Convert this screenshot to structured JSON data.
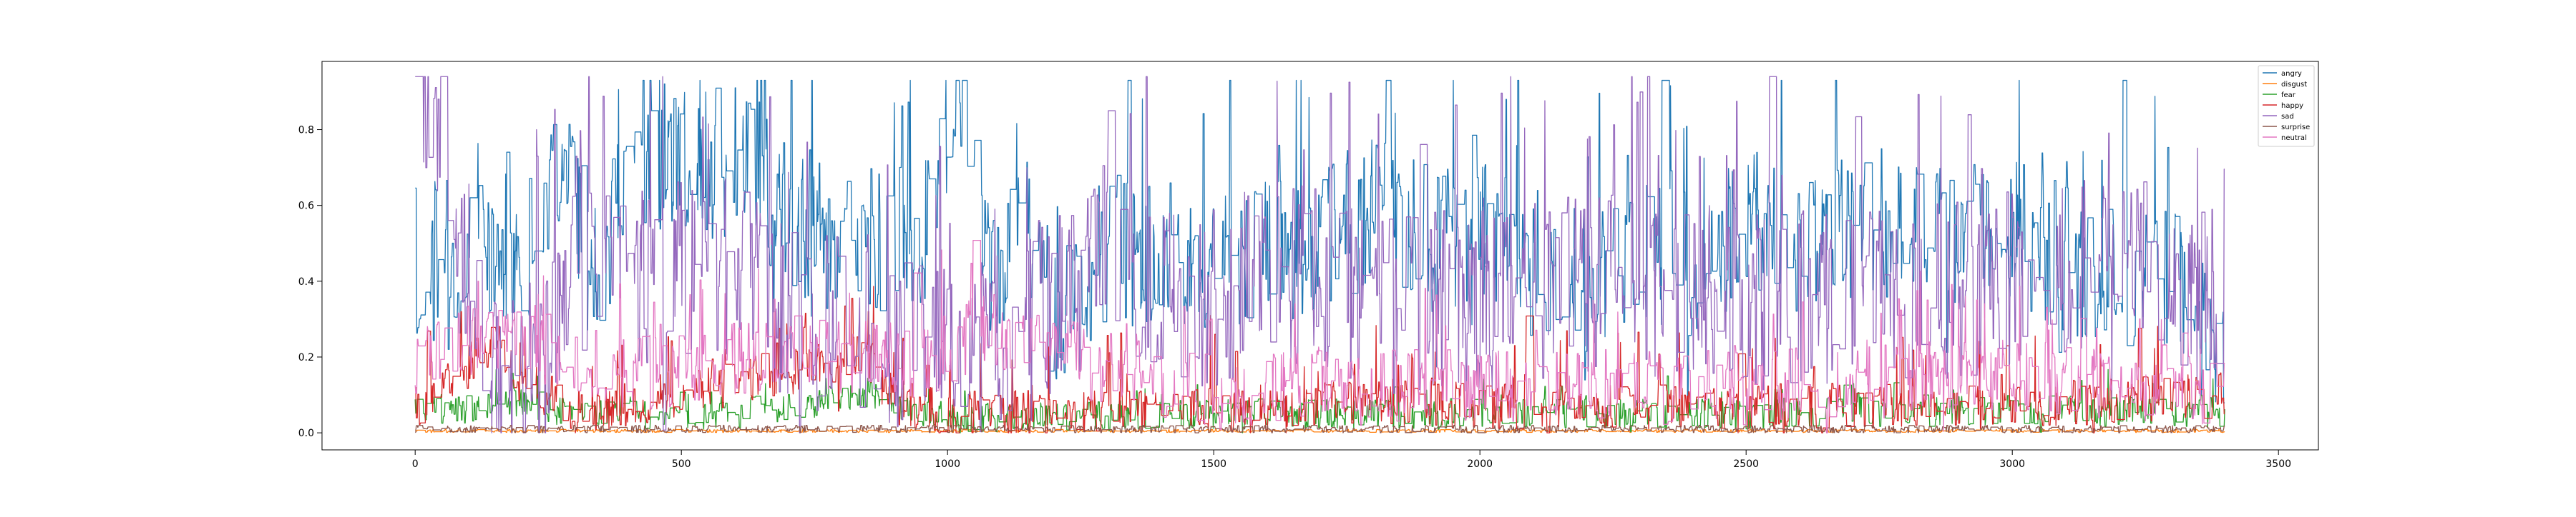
{
  "chart_data": {
    "type": "line",
    "title": "",
    "xlabel": "",
    "ylabel": "",
    "xlim": [
      -175,
      3575
    ],
    "ylim": [
      -0.045,
      0.98
    ],
    "xticks": [
      0,
      500,
      1000,
      1500,
      2000,
      2500,
      3000,
      3500
    ],
    "xtick_labels": [
      "0",
      "500",
      "1000",
      "1500",
      "2000",
      "2500",
      "3000",
      "3500"
    ],
    "yticks": [
      0.0,
      0.2,
      0.4,
      0.6,
      0.8
    ],
    "ytick_labels": [
      "0.0",
      "0.2",
      "0.4",
      "0.6",
      "0.8"
    ],
    "grid": false,
    "legend_position": "top-right",
    "n_points": 3400,
    "series": [
      {
        "name": "angry",
        "color": "#1f77b4",
        "base": 0.5,
        "spread": 0.2,
        "spike": 0.12,
        "max": 0.93,
        "anchors": [
          [
            0,
            0.56
          ],
          [
            5,
            0.2
          ],
          [
            20,
            0.35
          ],
          [
            90,
            0.45
          ],
          [
            150,
            0.5
          ],
          [
            185,
            0.48
          ],
          [
            230,
            0.48
          ],
          [
            260,
            0.7
          ],
          [
            290,
            0.75
          ],
          [
            330,
            0.4
          ],
          [
            420,
            0.76
          ],
          [
            520,
            0.7
          ],
          [
            640,
            0.72
          ],
          [
            680,
            0.58
          ],
          [
            800,
            0.5
          ],
          [
            870,
            0.52
          ],
          [
            950,
            0.5
          ],
          [
            1020,
            0.92
          ],
          [
            1060,
            0.48
          ],
          [
            1100,
            0.43
          ],
          [
            1130,
            0.65
          ],
          [
            1200,
            0.3
          ],
          [
            1300,
            0.5
          ],
          [
            1400,
            0.45
          ],
          [
            1500,
            0.45
          ],
          [
            1600,
            0.5
          ],
          [
            1700,
            0.5
          ],
          [
            1800,
            0.6
          ],
          [
            1900,
            0.5
          ],
          [
            2000,
            0.55
          ],
          [
            2100,
            0.45
          ],
          [
            2200,
            0.4
          ],
          [
            2300,
            0.5
          ],
          [
            2400,
            0.45
          ],
          [
            2500,
            0.55
          ],
          [
            2600,
            0.5
          ],
          [
            2700,
            0.55
          ],
          [
            2800,
            0.55
          ],
          [
            2900,
            0.5
          ],
          [
            3000,
            0.55
          ],
          [
            3100,
            0.45
          ],
          [
            3200,
            0.45
          ],
          [
            3300,
            0.4
          ],
          [
            3399,
            0.2
          ]
        ]
      },
      {
        "name": "disgust",
        "color": "#ff7f0e",
        "base": 0.004,
        "spread": 0.004,
        "spike": 0.0,
        "max": 0.03,
        "anchors": [
          [
            0,
            0.005
          ],
          [
            3399,
            0.005
          ]
        ]
      },
      {
        "name": "fear",
        "color": "#2ca02c",
        "base": 0.04,
        "spread": 0.04,
        "spike": 0.02,
        "max": 0.28,
        "anchors": [
          [
            0,
            0.06
          ],
          [
            200,
            0.08
          ],
          [
            300,
            0.05
          ],
          [
            600,
            0.05
          ],
          [
            850,
            0.1
          ],
          [
            1000,
            0.04
          ],
          [
            1500,
            0.05
          ],
          [
            2000,
            0.05
          ],
          [
            2500,
            0.05
          ],
          [
            3000,
            0.06
          ],
          [
            3399,
            0.05
          ]
        ]
      },
      {
        "name": "happy",
        "color": "#d62728",
        "base": 0.05,
        "spread": 0.06,
        "spike": 0.05,
        "max": 0.93,
        "anchors": [
          [
            0,
            0.05
          ],
          [
            160,
            0.25
          ],
          [
            190,
            0.12
          ],
          [
            250,
            0.1
          ],
          [
            300,
            0.05
          ],
          [
            850,
            0.2
          ],
          [
            900,
            0.08
          ],
          [
            1000,
            0.05
          ],
          [
            1500,
            0.06
          ],
          [
            1800,
            0.08
          ],
          [
            2000,
            0.07
          ],
          [
            2500,
            0.07
          ],
          [
            3000,
            0.07
          ],
          [
            3399,
            0.1
          ]
        ]
      },
      {
        "name": "sad",
        "color": "#9467bd",
        "base": 0.32,
        "spread": 0.24,
        "spike": 0.14,
        "max": 0.94,
        "anchors": [
          [
            0,
            0.9
          ],
          [
            80,
            0.6
          ],
          [
            150,
            0.1
          ],
          [
            250,
            0.2
          ],
          [
            300,
            0.6
          ],
          [
            380,
            0.4
          ],
          [
            600,
            0.45
          ],
          [
            700,
            0.3
          ],
          [
            900,
            0.25
          ],
          [
            1000,
            0.2
          ],
          [
            1100,
            0.25
          ],
          [
            1200,
            0.35
          ],
          [
            1300,
            0.4
          ],
          [
            1500,
            0.35
          ],
          [
            1600,
            0.45
          ],
          [
            1800,
            0.35
          ],
          [
            2000,
            0.35
          ],
          [
            2200,
            0.4
          ],
          [
            2500,
            0.35
          ],
          [
            2800,
            0.35
          ],
          [
            3000,
            0.4
          ],
          [
            3200,
            0.45
          ],
          [
            3399,
            0.35
          ]
        ]
      },
      {
        "name": "surprise",
        "color": "#8c564b",
        "base": 0.01,
        "spread": 0.01,
        "spike": 0.0,
        "max": 0.05,
        "anchors": [
          [
            0,
            0.01
          ],
          [
            3399,
            0.01
          ]
        ]
      },
      {
        "name": "neutral",
        "color": "#e377c2",
        "base": 0.12,
        "spread": 0.1,
        "spike": 0.06,
        "max": 0.7,
        "anchors": [
          [
            0,
            0.2
          ],
          [
            180,
            0.28
          ],
          [
            250,
            0.22
          ],
          [
            400,
            0.15
          ],
          [
            700,
            0.22
          ],
          [
            800,
            0.2
          ],
          [
            1000,
            0.18
          ],
          [
            1050,
            0.28
          ],
          [
            1100,
            0.26
          ],
          [
            1400,
            0.12
          ],
          [
            2000,
            0.12
          ],
          [
            2500,
            0.12
          ],
          [
            3000,
            0.15
          ],
          [
            3399,
            0.12
          ]
        ]
      }
    ]
  }
}
